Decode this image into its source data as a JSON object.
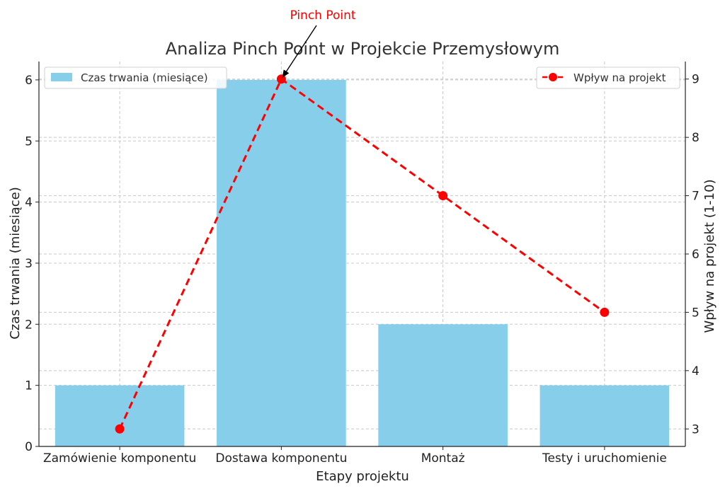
{
  "chart_data": {
    "type": "bar+line",
    "title": "Analiza Pinch Point w Projekcie Przemysłowym",
    "xlabel": "Etapy projektu",
    "categories": [
      "Zamówienie komponentu",
      "Dostawa komponentu",
      "Montaż",
      "Testy i uruchomienie"
    ],
    "left_axis": {
      "label": "Czas trwania (miesiące)",
      "range": [
        0,
        6.3
      ],
      "ticks": [
        0,
        1,
        2,
        3,
        4,
        5,
        6
      ]
    },
    "right_axis": {
      "label": "Wpływ na projekt (1-10)",
      "range": [
        2.7,
        9.3
      ],
      "ticks": [
        3,
        4,
        5,
        6,
        7,
        8,
        9
      ]
    },
    "series": [
      {
        "name": "Czas trwania (miesiące)",
        "kind": "bar",
        "axis": "left",
        "color": "#87ceeb",
        "values": [
          1,
          6,
          2,
          1
        ]
      },
      {
        "name": "Wpływ na projekt",
        "kind": "line",
        "axis": "right",
        "color": "#ff0000",
        "line_style": "dashed",
        "marker": "circle",
        "values": [
          3,
          9,
          7,
          5
        ]
      }
    ],
    "annotation": {
      "text": "Pinch Point",
      "color": "#ff0000",
      "category": "Dostawa komponentu",
      "value": 9
    },
    "grid": true,
    "legend_bar_position": "upper-left",
    "legend_line_position": "upper-right"
  }
}
